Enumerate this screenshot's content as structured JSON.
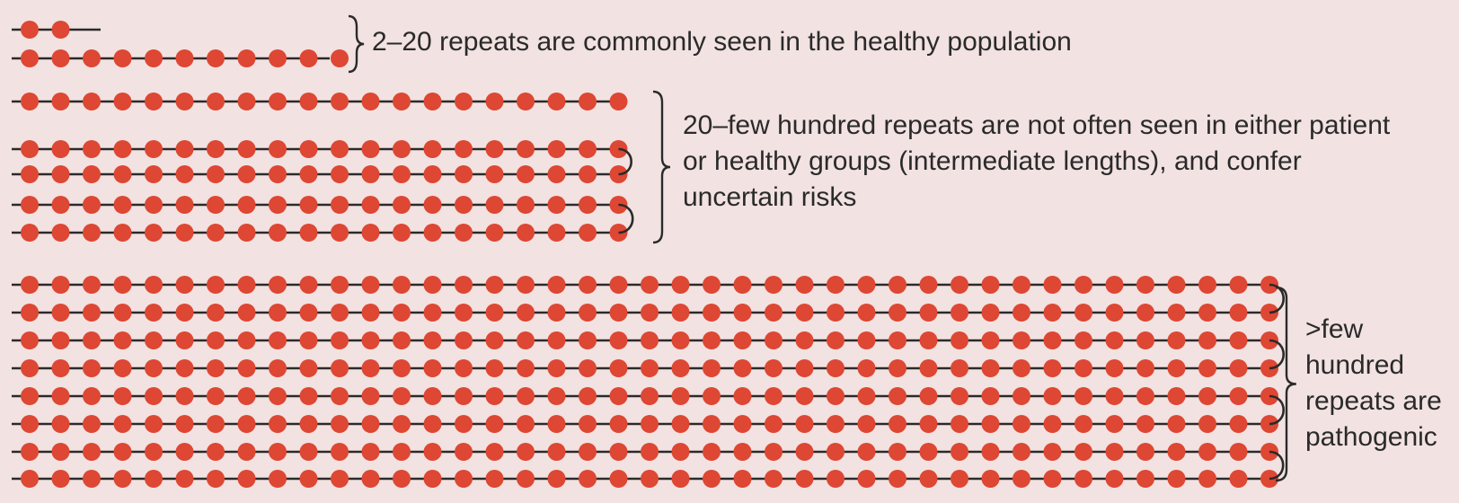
{
  "colors": {
    "background": "#f2e2e1",
    "repeat_bead": "#dd4733",
    "strand": "#2a2a2a",
    "text": "#2a2a2a"
  },
  "groups": [
    {
      "id": "common",
      "strands": [
        {
          "repeats": 2
        },
        {
          "repeats": 11
        }
      ],
      "label_lines": [
        "2–20 repeats are commonly seen in the healthy population"
      ]
    },
    {
      "id": "intermediate",
      "strands": [
        {
          "repeats": 20
        },
        {
          "repeats": 20
        },
        {
          "repeats": 20
        },
        {
          "repeats": 20
        },
        {
          "repeats": 20
        }
      ],
      "label_lines": [
        "20–few hundred repeats are not often seen in either patient",
        "or healthy groups (intermediate lengths), and confer",
        "uncertain risks"
      ]
    },
    {
      "id": "pathogenic",
      "strands": [
        {
          "repeats": 41
        },
        {
          "repeats": 41
        },
        {
          "repeats": 41
        },
        {
          "repeats": 41
        },
        {
          "repeats": 41
        },
        {
          "repeats": 41
        },
        {
          "repeats": 41
        },
        {
          "repeats": 41
        }
      ],
      "label_lines": [
        ">few",
        "hundred",
        "repeats are",
        "pathogenic"
      ]
    }
  ]
}
